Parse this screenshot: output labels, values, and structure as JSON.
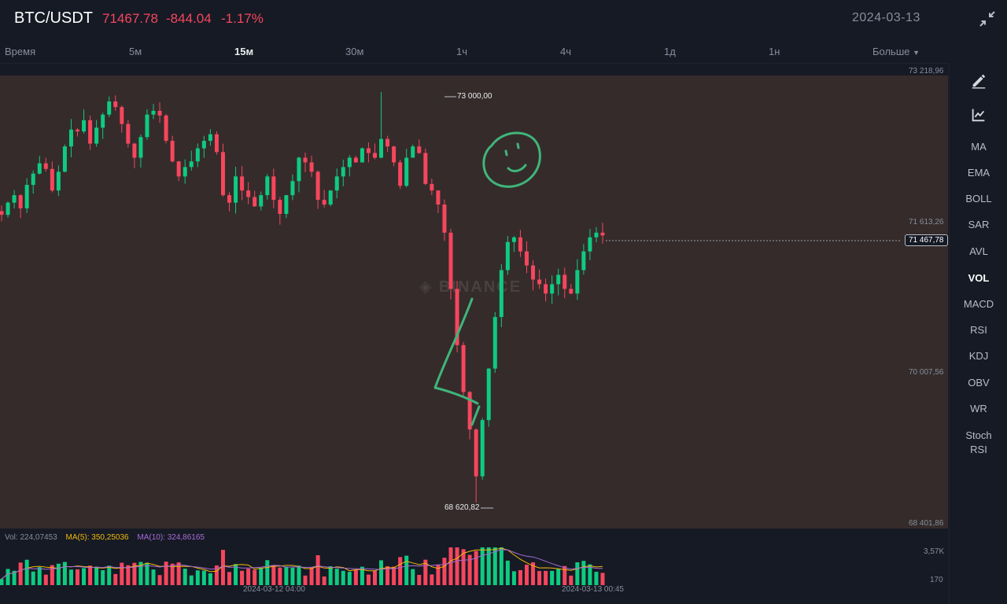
{
  "header": {
    "pair": "BTC/USDT",
    "price": "71467.78",
    "change": "-844.04",
    "change_pct": "-1.17%",
    "date": "2024-03-13",
    "collapse_icon": "collapse-arrows-icon"
  },
  "timeframes": [
    {
      "label": "Время"
    },
    {
      "label": "5м"
    },
    {
      "label": "15м",
      "active": true
    },
    {
      "label": "30м"
    },
    {
      "label": "1ч"
    },
    {
      "label": "4ч"
    },
    {
      "label": "1д"
    },
    {
      "label": "1н"
    },
    {
      "label": "Больше"
    }
  ],
  "sidebar": {
    "tools": [
      {
        "icon": "draw-pen-icon"
      },
      {
        "icon": "chart-indicator-icon"
      }
    ],
    "indicators": [
      {
        "label": "MA"
      },
      {
        "label": "EMA"
      },
      {
        "label": "BOLL"
      },
      {
        "label": "SAR"
      },
      {
        "label": "AVL"
      },
      {
        "label": "VOL",
        "active": true
      },
      {
        "label": "MACD"
      },
      {
        "label": "RSI"
      },
      {
        "label": "KDJ"
      },
      {
        "label": "OBV"
      },
      {
        "label": "WR"
      },
      {
        "label": "Stoch RSI"
      }
    ]
  },
  "price_axis": {
    "labels": [
      "73 218,96",
      "71 613,26",
      "70 007,56",
      "68 401,86"
    ],
    "current_price_tag": "71 467,78"
  },
  "annotations": {
    "high": "73 000,00",
    "low": "68 620,82"
  },
  "watermark": "BINANCE",
  "volume": {
    "vol": "Vol: 224,07453",
    "ma5": "MA(5): 350,25036",
    "ma10": "MA(10): 324,86165",
    "axis_max": "3,57K",
    "axis_min": "170",
    "time_labels": [
      "2024-03-12 04:00",
      "2024-03-13 00:45"
    ]
  },
  "colors": {
    "up": "#0ecb81",
    "down": "#f6465d",
    "ma5": "#f0b90b",
    "ma10": "#a56bd6",
    "drawing": "#3fb57a",
    "chart_bg": "#352b2b",
    "page_bg": "#161a25"
  },
  "chart_data": {
    "type": "candlestick",
    "symbol": "BTC/USDT",
    "interval": "15м",
    "ylim": [
      68401.86,
      73218.96
    ],
    "y_ticks": [
      73218.96,
      71613.26,
      70007.56,
      68401.86
    ],
    "period_high": 73000.0,
    "period_low": 68620.82,
    "last_price": 71467.78,
    "close_series": [
      71690,
      71820,
      71900,
      71760,
      72010,
      72130,
      72240,
      72180,
      71950,
      72150,
      72420,
      72600,
      72580,
      72700,
      72450,
      72620,
      72760,
      72900,
      72840,
      72660,
      72450,
      72300,
      72520,
      72760,
      72800,
      72750,
      72480,
      72260,
      72100,
      72200,
      72260,
      72400,
      72480,
      72550,
      72360,
      71900,
      71820,
      72100,
      71950,
      71880,
      71780,
      71900,
      72100,
      71850,
      71700,
      71900,
      72050,
      72300,
      72250,
      72150,
      71850,
      71800,
      71950,
      72100,
      72200,
      72300,
      72250,
      72400,
      72350,
      72300,
      72500,
      72420,
      72250,
      72000,
      72300,
      72420,
      72350,
      72020,
      71950,
      71800,
      71500,
      70900,
      70300,
      69800,
      69400,
      68900,
      69500,
      70050,
      70600,
      71100,
      71400,
      71450,
      71300,
      71150,
      71000,
      70950,
      70850,
      70950,
      71050,
      70900,
      70850,
      71100,
      71300,
      71450,
      71500,
      71470
    ]
  }
}
